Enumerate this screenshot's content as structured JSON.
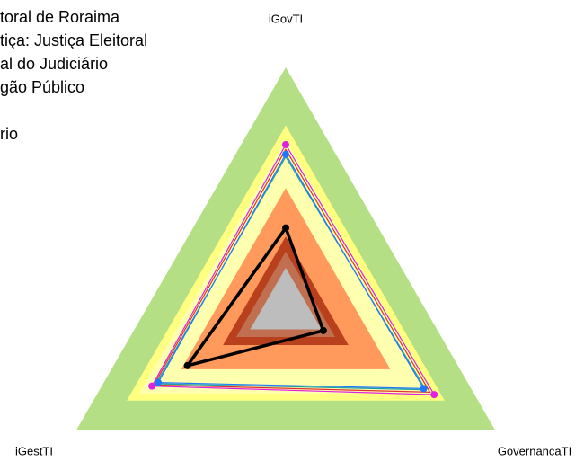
{
  "chart_data": {
    "type": "radar",
    "axes": [
      "iGovTI",
      "GovernancaTI",
      "iGestTI"
    ],
    "ylim": [
      0,
      100
    ],
    "series": [
      {
        "name": "toral de Roraima",
        "color": "#000000",
        "values": [
          33.5,
          18,
          47
        ],
        "markers": true
      },
      {
        "name": "tiça: Justiça Eleitoral",
        "color": "#e020e0",
        "values": [
          68,
          71,
          64
        ],
        "markers": true
      },
      {
        "name": "al do Judiciário",
        "color": "#1e78ff",
        "values": [
          64,
          66,
          61
        ],
        "markers": true
      },
      {
        "name": "gão Público",
        "color": "#e03030",
        "values": [
          66,
          69,
          63
        ],
        "markers": false
      },
      {
        "name": "rio",
        "color": "#20a0a0",
        "values": [
          63,
          67,
          62
        ],
        "markers": false
      }
    ]
  }
}
